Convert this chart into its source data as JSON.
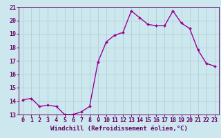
{
  "x": [
    0,
    1,
    2,
    3,
    4,
    5,
    6,
    7,
    8,
    9,
    10,
    11,
    12,
    13,
    14,
    15,
    16,
    17,
    18,
    19,
    20,
    21,
    22,
    23
  ],
  "y": [
    14.1,
    14.2,
    13.6,
    13.7,
    13.6,
    13.0,
    13.0,
    13.2,
    13.6,
    16.9,
    18.4,
    18.9,
    19.1,
    20.7,
    20.2,
    19.7,
    19.6,
    19.6,
    20.7,
    19.8,
    19.4,
    17.8,
    16.8,
    16.6
  ],
  "line_color": "#990099",
  "marker": "D",
  "marker_size": 2.0,
  "linewidth": 1.0,
  "bg_color": "#cce8ee",
  "grid_color": "#aacccc",
  "xlabel": "Windchill (Refroidissement éolien,°C)",
  "xlabel_color": "#660066",
  "tick_color": "#660066",
  "ylim": [
    13,
    21
  ],
  "xlim": [
    -0.5,
    23.5
  ],
  "yticks": [
    13,
    14,
    15,
    16,
    17,
    18,
    19,
    20,
    21
  ],
  "xticks": [
    0,
    1,
    2,
    3,
    4,
    5,
    6,
    7,
    8,
    9,
    10,
    11,
    12,
    13,
    14,
    15,
    16,
    17,
    18,
    19,
    20,
    21,
    22,
    23
  ],
  "fontsize_xlabel": 6.5,
  "fontsize_ticks": 6.0
}
